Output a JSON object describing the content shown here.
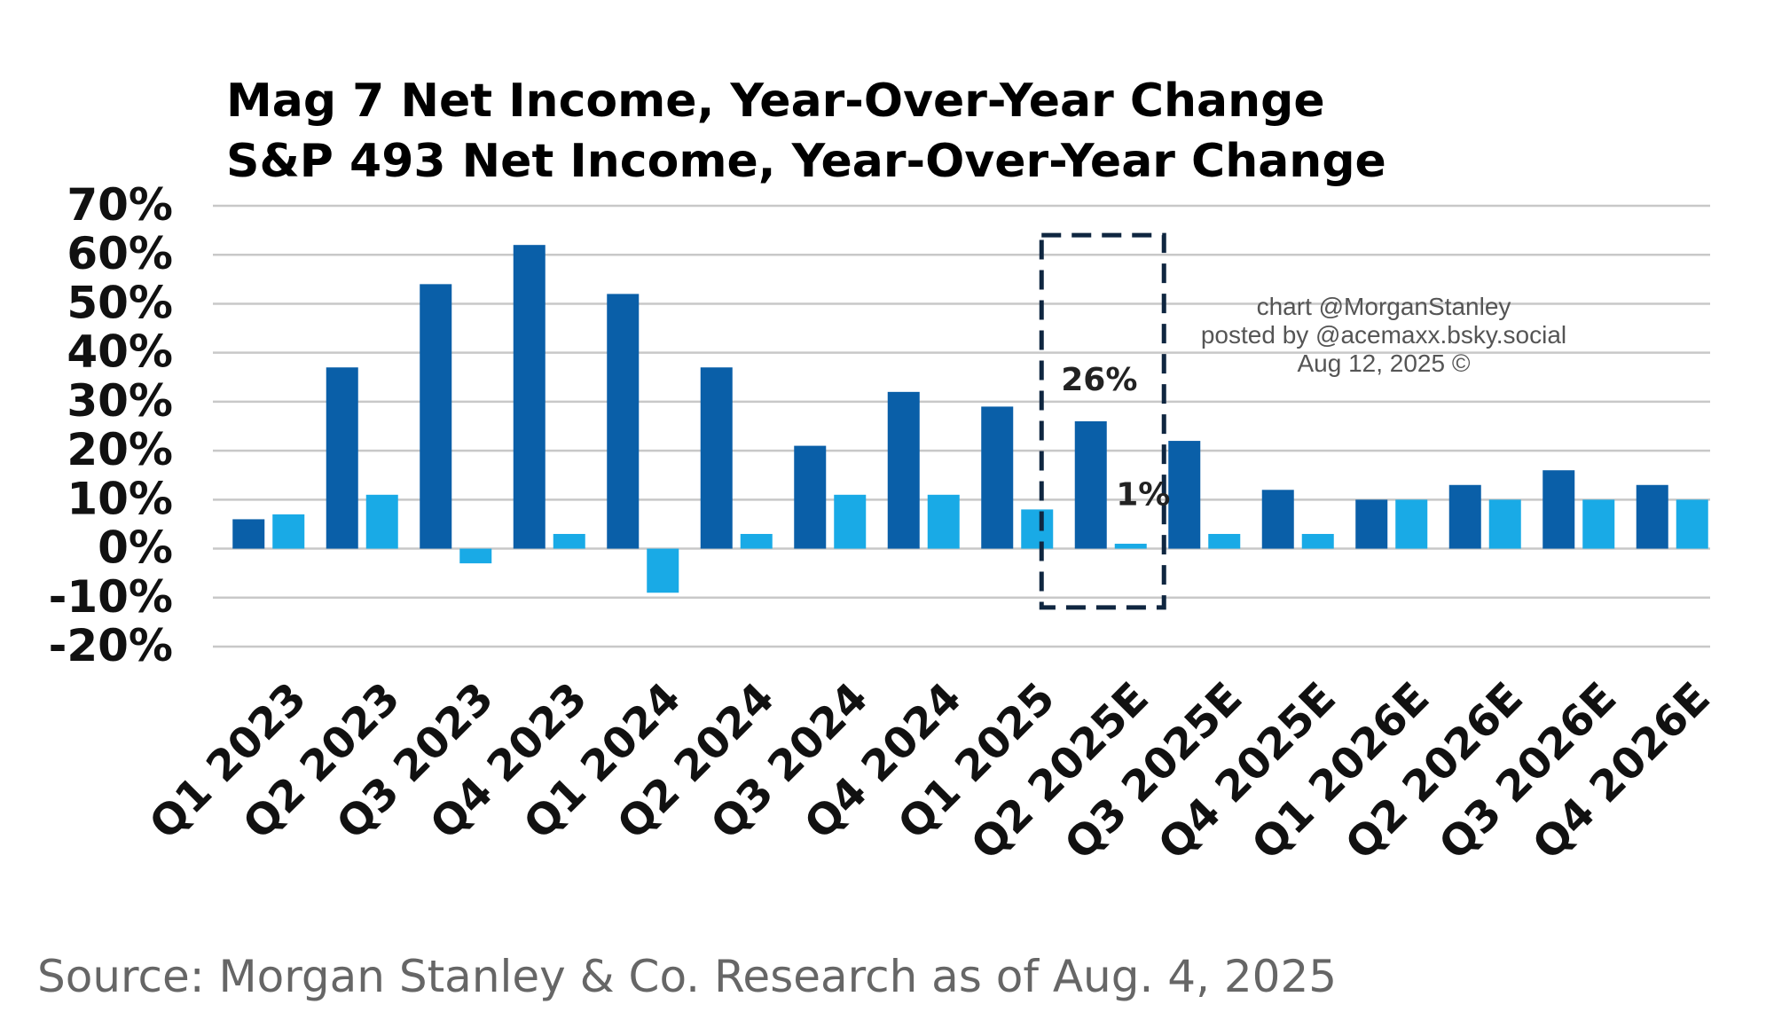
{
  "chart_data": {
    "type": "bar",
    "title_lines": [
      {
        "text": "Mag 7 Net Income, Year-Over-Year Change",
        "color": "#0A5FA8"
      },
      {
        "text": "S&P 493 Net Income, Year-Over-Year Change",
        "color": "#19AAE6"
      }
    ],
    "categories": [
      "Q1 2023",
      "Q2 2023",
      "Q3 2023",
      "Q4 2023",
      "Q1 2024",
      "Q2 2024",
      "Q3 2024",
      "Q4 2024",
      "Q1 2025",
      "Q2 2025E",
      "Q3 2025E",
      "Q4 2025E",
      "Q1 2026E",
      "Q2 2026E",
      "Q3 2026E",
      "Q4 2026E"
    ],
    "series": [
      {
        "color": "#0A5FA8",
        "values": [
          6,
          37,
          54,
          62,
          52,
          37,
          21,
          32,
          29,
          26,
          22,
          12,
          10,
          13,
          16,
          13
        ]
      },
      {
        "color": "#19AAE6",
        "values": [
          7,
          11,
          -3,
          3,
          -9,
          3,
          11,
          11,
          8,
          1,
          3,
          3,
          10,
          10,
          10,
          10
        ]
      }
    ],
    "ylim": [
      -20,
      70
    ],
    "yticks": [
      70,
      60,
      50,
      40,
      30,
      20,
      10,
      0,
      -10,
      -20
    ],
    "ytick_labels": [
      "70%",
      "60%",
      "50%",
      "40%",
      "30%",
      "20%",
      "10%",
      "0%",
      "-10%",
      "-20%"
    ],
    "grid": true,
    "highlight_category": "Q2 2025E",
    "annotations": [
      "26%",
      "1%"
    ]
  },
  "credit": {
    "line1": "chart @MorganStanley",
    "line2": "posted by @acemaxx.bsky.social",
    "line3": "Aug 12, 2025 ©"
  },
  "source": "Source: Morgan Stanley & Co. Research as of Aug. 4, 2025"
}
